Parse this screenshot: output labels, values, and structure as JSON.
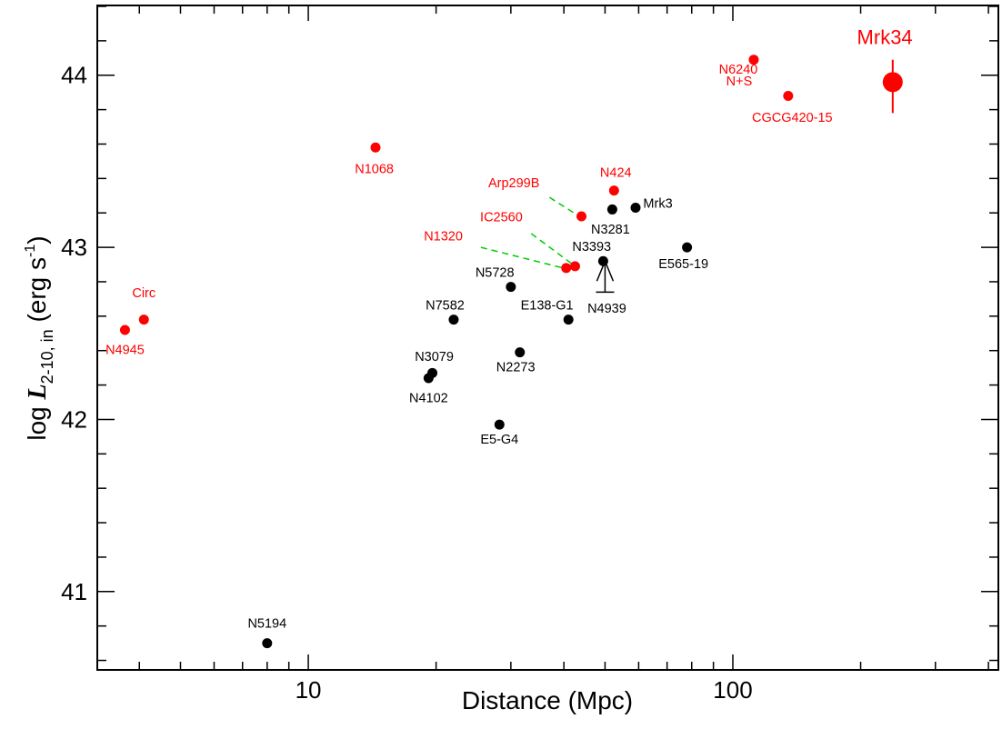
{
  "chart_data": {
    "type": "scatter",
    "xscale": "log",
    "xlabel": "Distance (Mpc)",
    "ylabel": {
      "prefix": "log ",
      "symbol": "L",
      "subscript": "2-10, in",
      "unit_open": " (erg s",
      "unit_sup": "-1",
      "unit_close": ")"
    },
    "xlim": [
      3.2,
      420
    ],
    "ylim": [
      40.55,
      44.4
    ],
    "xticks": [
      {
        "value": 10,
        "label": "10"
      },
      {
        "value": 100,
        "label": "100"
      }
    ],
    "yticks": [
      {
        "value": 41,
        "label": "41"
      },
      {
        "value": 42,
        "label": "42"
      },
      {
        "value": 43,
        "label": "43"
      },
      {
        "value": 44,
        "label": "44"
      }
    ],
    "colors": {
      "black_group": "#000000",
      "red_group": "#ff0000",
      "connector": "#00cc00"
    },
    "points": [
      {
        "label": "N5194",
        "x": 8.0,
        "y": 40.7,
        "color": "#000000"
      },
      {
        "label": "N4102",
        "x": 19.2,
        "y": 42.24,
        "color": "#000000"
      },
      {
        "label": "N3079",
        "x": 19.6,
        "y": 42.27,
        "color": "#000000"
      },
      {
        "label": "N7582",
        "x": 22.0,
        "y": 42.58,
        "color": "#000000"
      },
      {
        "label": "E5-G4",
        "x": 28.2,
        "y": 41.97,
        "color": "#000000"
      },
      {
        "label": "N5728",
        "x": 30.0,
        "y": 42.77,
        "color": "#000000"
      },
      {
        "label": "N2273",
        "x": 31.5,
        "y": 42.39,
        "color": "#000000"
      },
      {
        "label": "E138-G1",
        "x": 41.0,
        "y": 42.58,
        "color": "#000000"
      },
      {
        "label": "N3393",
        "x": 49.5,
        "y": 42.92,
        "color": "#000000"
      },
      {
        "label": "N3281",
        "x": 52.0,
        "y": 43.22,
        "color": "#000000"
      },
      {
        "label": "Mrk3",
        "x": 59.0,
        "y": 43.23,
        "color": "#000000"
      },
      {
        "label": "E565-19",
        "x": 78.0,
        "y": 43.0,
        "color": "#000000"
      },
      {
        "label": "N4945",
        "x": 3.7,
        "y": 42.52,
        "color": "#ff0000"
      },
      {
        "label": "Circ",
        "x": 4.1,
        "y": 42.58,
        "color": "#ff0000"
      },
      {
        "label": "N1068",
        "x": 14.4,
        "y": 43.58,
        "color": "#ff0000"
      },
      {
        "label": "N1320",
        "x": 40.5,
        "y": 42.88,
        "color": "#ff0000"
      },
      {
        "label": "IC2560",
        "x": 42.5,
        "y": 42.89,
        "color": "#ff0000"
      },
      {
        "label": "Arp299B",
        "x": 44.0,
        "y": 43.18,
        "color": "#ff0000"
      },
      {
        "label": "N424",
        "x": 52.5,
        "y": 43.33,
        "color": "#ff0000"
      },
      {
        "label": "N6240 N+S",
        "x": 112.0,
        "y": 44.09,
        "color": "#ff0000"
      },
      {
        "label": "CGCG420-15",
        "x": 135.0,
        "y": 43.88,
        "color": "#ff0000"
      },
      {
        "label": "Mrk34",
        "x": 238.0,
        "y": 43.96,
        "color": "#ff0000",
        "yerr": [
          0.18,
          0.13
        ],
        "large": true
      }
    ],
    "lower_limit": {
      "label": "N4939",
      "x": 50.0,
      "y": 42.74,
      "arrow_to": 42.92
    },
    "text_labels": [
      {
        "text": "N5194",
        "x": 8.0,
        "y": 40.79,
        "anchor": "middle",
        "color": "#000000"
      },
      {
        "text": "N4102",
        "x": 19.2,
        "y": 42.1,
        "anchor": "middle",
        "color": "#000000"
      },
      {
        "text": "N3079",
        "x": 19.8,
        "y": 42.34,
        "anchor": "middle",
        "color": "#000000"
      },
      {
        "text": "N7582",
        "x": 21.0,
        "y": 42.64,
        "anchor": "middle",
        "color": "#000000"
      },
      {
        "text": "E5-G4",
        "x": 28.2,
        "y": 41.86,
        "anchor": "middle",
        "color": "#000000"
      },
      {
        "text": "N5728",
        "x": 27.5,
        "y": 42.83,
        "anchor": "middle",
        "color": "#000000"
      },
      {
        "text": "N2273",
        "x": 30.8,
        "y": 42.28,
        "anchor": "middle",
        "color": "#000000"
      },
      {
        "text": "E138-G1",
        "x": 36.5,
        "y": 42.64,
        "anchor": "middle",
        "color": "#000000"
      },
      {
        "text": "N3393",
        "x": 46.5,
        "y": 42.98,
        "anchor": "middle",
        "color": "#000000"
      },
      {
        "text": "N4939",
        "x": 50.5,
        "y": 42.62,
        "anchor": "middle",
        "color": "#000000"
      },
      {
        "text": "N3281",
        "x": 51.5,
        "y": 43.08,
        "anchor": "middle",
        "color": "#000000"
      },
      {
        "text": "Mrk3",
        "x": 61.5,
        "y": 43.23,
        "anchor": "start",
        "color": "#000000"
      },
      {
        "text": "E565-19",
        "x": 76.5,
        "y": 42.88,
        "anchor": "middle",
        "color": "#000000"
      },
      {
        "text": "Circ",
        "x": 4.1,
        "y": 42.71,
        "anchor": "middle",
        "color": "#ff0000"
      },
      {
        "text": "N4945",
        "x": 3.7,
        "y": 42.38,
        "anchor": "middle",
        "color": "#ff0000"
      },
      {
        "text": "N1068",
        "x": 14.3,
        "y": 43.43,
        "anchor": "middle",
        "color": "#ff0000"
      },
      {
        "text": "Arp299B",
        "x": 30.5,
        "y": 43.35,
        "anchor": "middle",
        "color": "#ff0000"
      },
      {
        "text": "N424",
        "x": 53.0,
        "y": 43.41,
        "anchor": "middle",
        "color": "#ff0000"
      },
      {
        "text": "IC2560",
        "x": 28.5,
        "y": 43.15,
        "anchor": "middle",
        "color": "#ff0000"
      },
      {
        "text": "N1320",
        "x": 20.8,
        "y": 43.04,
        "anchor": "middle",
        "color": "#ff0000"
      },
      {
        "text": "N6240",
        "x": 103.0,
        "y": 44.01,
        "anchor": "middle",
        "color": "#ff0000"
      },
      {
        "text": "N+S",
        "x": 103.5,
        "y": 43.94,
        "anchor": "middle",
        "color": "#ff0000"
      },
      {
        "text": "CGCG420-15",
        "x": 138.0,
        "y": 43.73,
        "anchor": "middle",
        "color": "#ff0000"
      },
      {
        "text": "Mrk34",
        "x": 228.0,
        "y": 44.18,
        "anchor": "middle",
        "color": "#ff0000",
        "large": true
      }
    ],
    "connectors": [
      {
        "name": "arp299b-connector",
        "from": [
          37.0,
          43.29
        ],
        "to": [
          43.5,
          43.18
        ]
      },
      {
        "name": "ic2560-connector",
        "from": [
          33.5,
          43.08
        ],
        "to": [
          42.0,
          42.9
        ]
      },
      {
        "name": "n1320-connector",
        "from": [
          25.5,
          43.0
        ],
        "to": [
          39.8,
          42.88
        ]
      }
    ]
  }
}
